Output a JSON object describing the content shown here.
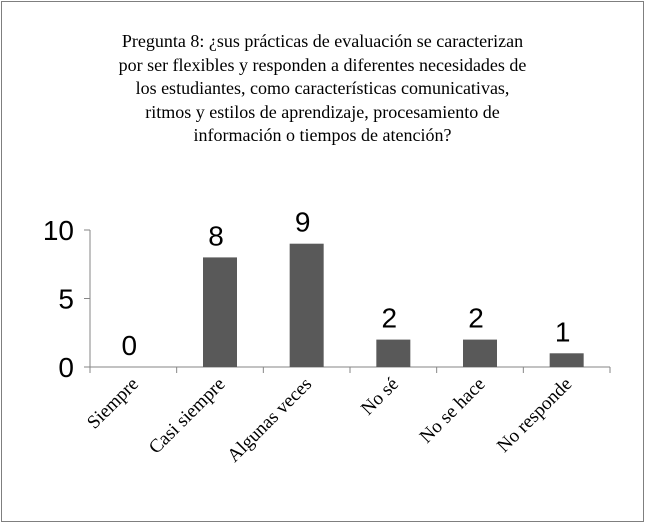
{
  "chart_data": {
    "type": "bar",
    "title": "Pregunta 8: ¿sus prácticas de evaluación se caracterizan por ser flexibles y responden a diferentes necesidades de los estudiantes, como características comunicativas, ritmos y estilos de aprendizaje, procesamiento de información o tiempos de atención?",
    "title_lines": [
      "Pregunta 8: ¿sus prácticas de evaluación se caracterizan",
      "por ser flexibles y responden a diferentes necesidades de",
      "los estudiantes, como características comunicativas,",
      "ritmos y estilos de aprendizaje, procesamiento de",
      "información o tiempos de atención?"
    ],
    "categories": [
      "Siempre",
      "Casi siempre",
      "Algunas veces",
      "No sé",
      "No se hace",
      "No responde"
    ],
    "values": [
      0,
      8,
      9,
      2,
      2,
      1
    ],
    "xlabel": "",
    "ylabel": "",
    "ylim": [
      0,
      10
    ],
    "yticks": [
      0,
      5,
      10
    ],
    "grid": false,
    "legend": "none",
    "bar_color": "#595959"
  }
}
